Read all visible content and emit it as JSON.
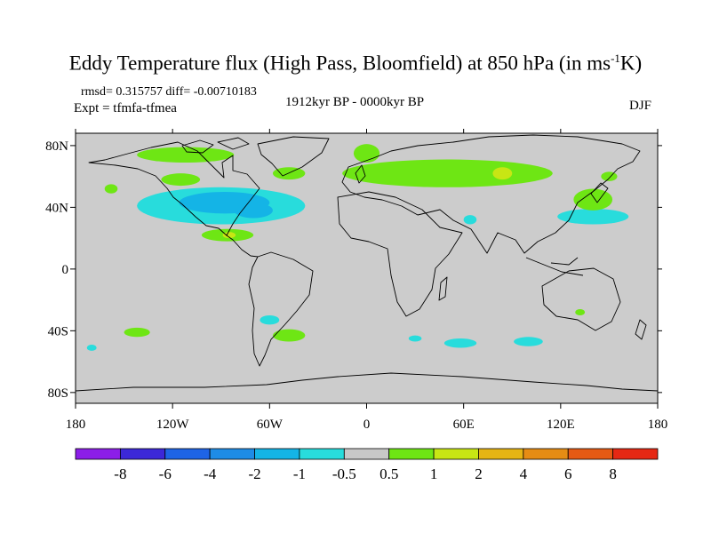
{
  "chart_data": {
    "type": "heatmap",
    "title_main": "Eddy Temperature flux (High Pass, Bloomfield) at 850 hPa (in ms",
    "title_sup": "-1",
    "title_end": "K)",
    "rmsd_diff": "rmsd= 0.315757 diff= -0.00710183",
    "expt": "Expt = tfmfa-tfmea",
    "period": "1912kyr BP - 0000kyr BP",
    "season": "DJF",
    "x_ticks": [
      {
        "value": -180,
        "label": "180"
      },
      {
        "value": -120,
        "label": "120W"
      },
      {
        "value": -60,
        "label": "60W"
      },
      {
        "value": 0,
        "label": "0"
      },
      {
        "value": 60,
        "label": "60E"
      },
      {
        "value": 120,
        "label": "120E"
      },
      {
        "value": 180,
        "label": "180"
      }
    ],
    "y_ticks": [
      {
        "value": 80,
        "label": "80N"
      },
      {
        "value": 40,
        "label": "40N"
      },
      {
        "value": 0,
        "label": "0"
      },
      {
        "value": -40,
        "label": "40S"
      },
      {
        "value": -80,
        "label": "80S"
      }
    ],
    "xlim": [
      -180,
      180
    ],
    "ylim": [
      -87,
      88
    ],
    "colorbar": {
      "labels": [
        "-8",
        "-6",
        "-4",
        "-2",
        "-1",
        "-0.5",
        "0.5",
        "1",
        "2",
        "4",
        "6",
        "8"
      ],
      "colors": [
        "#8c1ee8",
        "#3c28d8",
        "#1e64e6",
        "#1e8ce6",
        "#14b4e6",
        "#28dcdc",
        "#c8c8c8",
        "#6ee614",
        "#c8e614",
        "#e6b414",
        "#e68c14",
        "#e65a14",
        "#e62814"
      ]
    },
    "regions": [
      {
        "color": "#28dcdc",
        "lon": -90,
        "lat": 41,
        "rlon": 52,
        "rlat": 12
      },
      {
        "color": "#14b4e6",
        "lon": -88,
        "lat": 43,
        "rlon": 28,
        "rlat": 7
      },
      {
        "color": "#14b4e6",
        "lon": -70,
        "lat": 38,
        "rlon": 12,
        "rlat": 5
      },
      {
        "color": "#28dcdc",
        "lon": -60,
        "lat": -33,
        "rlon": 6,
        "rlat": 3
      },
      {
        "color": "#28dcdc",
        "lon": 30,
        "lat": -45,
        "rlon": 4,
        "rlat": 2
      },
      {
        "color": "#28dcdc",
        "lon": 58,
        "lat": -48,
        "rlon": 10,
        "rlat": 3
      },
      {
        "color": "#28dcdc",
        "lon": 100,
        "lat": -47,
        "rlon": 9,
        "rlat": 3
      },
      {
        "color": "#28dcdc",
        "lon": 140,
        "lat": 34,
        "rlon": 22,
        "rlat": 5
      },
      {
        "color": "#28dcdc",
        "lon": -170,
        "lat": -51,
        "rlon": 3,
        "rlat": 2
      },
      {
        "color": "#28dcdc",
        "lon": 64,
        "lat": 32,
        "rlon": 4,
        "rlat": 3
      },
      {
        "color": "#6ee614",
        "lon": -112,
        "lat": 74,
        "rlon": 30,
        "rlat": 5
      },
      {
        "color": "#6ee614",
        "lon": -48,
        "lat": 62,
        "rlon": 10,
        "rlat": 4
      },
      {
        "color": "#6ee614",
        "lon": -115,
        "lat": 58,
        "rlon": 12,
        "rlat": 4
      },
      {
        "color": "#6ee614",
        "lon": -86,
        "lat": 22,
        "rlon": 16,
        "rlat": 4
      },
      {
        "color": "#6ee614",
        "lon": 50,
        "lat": 62,
        "rlon": 65,
        "rlat": 9
      },
      {
        "color": "#6ee614",
        "lon": 0,
        "lat": 75,
        "rlon": 8,
        "rlat": 6
      },
      {
        "color": "#6ee614",
        "lon": 140,
        "lat": 45,
        "rlon": 12,
        "rlat": 7
      },
      {
        "color": "#6ee614",
        "lon": -142,
        "lat": -41,
        "rlon": 8,
        "rlat": 3
      },
      {
        "color": "#6ee614",
        "lon": -48,
        "lat": -43,
        "rlon": 10,
        "rlat": 4
      },
      {
        "color": "#6ee614",
        "lon": -158,
        "lat": 52,
        "rlon": 4,
        "rlat": 3
      },
      {
        "color": "#6ee614",
        "lon": 132,
        "lat": -28,
        "rlon": 3,
        "rlat": 2
      },
      {
        "color": "#6ee614",
        "lon": 150,
        "lat": 60,
        "rlon": 5,
        "rlat": 3
      },
      {
        "color": "#c8e614",
        "lon": 84,
        "lat": 62,
        "rlon": 6,
        "rlat": 4
      },
      {
        "color": "#c8e614",
        "lon": -85,
        "lat": 22,
        "rlon": 4,
        "rlat": 2
      }
    ]
  }
}
